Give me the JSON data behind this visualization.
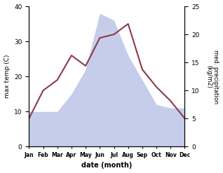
{
  "months": [
    "Jan",
    "Feb",
    "Mar",
    "Apr",
    "May",
    "Jun",
    "Jul",
    "Aug",
    "Sep",
    "Oct",
    "Nov",
    "Dec"
  ],
  "month_indices": [
    0,
    1,
    2,
    3,
    4,
    5,
    6,
    7,
    8,
    9,
    10,
    11
  ],
  "temp": [
    8,
    16,
    19,
    26,
    23,
    31,
    32,
    35,
    22,
    17,
    13,
    8
  ],
  "precip_left_scale": [
    10,
    10,
    10,
    15,
    22,
    38,
    36,
    26,
    19,
    12,
    11,
    11
  ],
  "temp_color": "#8B3A4A",
  "precip_fill_color": "#bcc5e8",
  "ylim_left": [
    0,
    40
  ],
  "ylim_right": [
    0,
    25
  ],
  "right_ticks": [
    0,
    5,
    10,
    15,
    20,
    25
  ],
  "right_tick_labels_in_left_scale": [
    0,
    8,
    16,
    24,
    32,
    40
  ],
  "ylabel_left": "max temp (C)",
  "ylabel_right": "med. precipitation\n(kg/m2)",
  "xlabel": "date (month)",
  "background_color": "#ffffff",
  "temp_linewidth": 1.5
}
